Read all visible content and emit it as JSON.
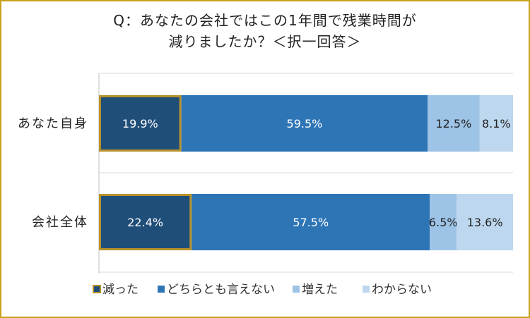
{
  "title_lines": [
    "Q：あなたの会社ではこの1年間で残業時間が",
    "減りましたか？＜択一回答＞"
  ],
  "chart_data": {
    "type": "bar",
    "orientation": "horizontal",
    "stacked": "percent",
    "title": "Q：あなたの会社ではこの1年間で残業時間が減りましたか？＜択一回答＞",
    "categories": [
      "あなた自身",
      "会社全体"
    ],
    "series": [
      {
        "name": "減った",
        "values": [
          19.9,
          22.4
        ],
        "color": "#1f4e79",
        "outline": "#b8922a",
        "label_color": "#ffffff"
      },
      {
        "name": "どちらとも言えない",
        "values": [
          59.5,
          57.5
        ],
        "color": "#2e75b6",
        "label_color": "#ffffff"
      },
      {
        "name": "増えた",
        "values": [
          12.5,
          6.5
        ],
        "color": "#9dc3e6",
        "label_color": "#222222"
      },
      {
        "name": "わからない",
        "values": [
          8.1,
          13.6
        ],
        "color": "#bdd7ee",
        "label_color": "#222222"
      }
    ],
    "data_labels": [
      [
        "19.9%",
        "22.4%"
      ],
      [
        "59.5%",
        "57.5%"
      ],
      [
        "12.5%",
        "6.5%"
      ],
      [
        "8.1%",
        "13.6%"
      ]
    ],
    "xlim": [
      0,
      100
    ],
    "grid": true,
    "legend_position": "bottom"
  },
  "colors": {
    "frame_border": "#c8a21a",
    "gridline": "#d9d9d9"
  }
}
